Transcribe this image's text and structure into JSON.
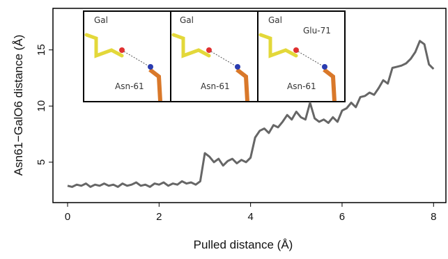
{
  "chart_data": {
    "type": "line",
    "x_label": "Pulled distance (Å)",
    "y_label": "Asn61−GalO6 distance (Å)",
    "x": [
      0.0,
      0.1,
      0.2,
      0.3,
      0.4,
      0.5,
      0.6,
      0.7,
      0.8,
      0.9,
      1.0,
      1.1,
      1.2,
      1.3,
      1.4,
      1.5,
      1.6,
      1.7,
      1.8,
      1.9,
      2.0,
      2.1,
      2.2,
      2.3,
      2.4,
      2.5,
      2.6,
      2.7,
      2.8,
      2.9,
      3.0,
      3.1,
      3.2,
      3.3,
      3.4,
      3.5,
      3.6,
      3.7,
      3.8,
      3.9,
      4.0,
      4.1,
      4.2,
      4.3,
      4.4,
      4.5,
      4.6,
      4.7,
      4.8,
      4.9,
      5.0,
      5.1,
      5.2,
      5.3,
      5.4,
      5.5,
      5.6,
      5.7,
      5.8,
      5.9,
      6.0,
      6.1,
      6.2,
      6.3,
      6.4,
      6.5,
      6.6,
      6.7,
      6.8,
      6.9,
      7.0,
      7.1,
      7.2,
      7.3,
      7.4,
      7.5,
      7.6,
      7.7,
      7.8,
      7.9,
      8.0
    ],
    "series": [
      {
        "color": "#666666",
        "values": [
          2.9,
          2.8,
          3.0,
          2.9,
          3.1,
          2.8,
          3.0,
          2.9,
          3.1,
          2.9,
          3.0,
          2.8,
          3.1,
          2.9,
          3.0,
          3.2,
          2.9,
          3.0,
          2.8,
          3.1,
          3.0,
          3.2,
          2.9,
          3.1,
          3.0,
          3.3,
          3.1,
          3.2,
          3.0,
          3.3,
          5.8,
          5.5,
          5.0,
          5.3,
          4.7,
          5.1,
          5.3,
          4.9,
          5.2,
          5.0,
          5.4,
          7.2,
          7.8,
          8.0,
          7.6,
          8.3,
          8.1,
          8.6,
          9.2,
          8.8,
          9.5,
          9.0,
          8.8,
          10.3,
          8.9,
          8.6,
          8.8,
          8.5,
          9.0,
          8.6,
          9.6,
          9.8,
          10.3,
          9.9,
          10.8,
          10.9,
          11.2,
          11.0,
          11.6,
          12.3,
          12.0,
          13.4,
          13.5,
          13.6,
          13.8,
          14.2,
          14.8,
          15.8,
          15.5,
          13.7,
          13.3
        ]
      }
    ],
    "xlim": [
      -0.32,
      8.27
    ],
    "ylim": [
      1.4,
      18.7
    ],
    "xticks": [
      0,
      2,
      4,
      6,
      8
    ],
    "yticks": [
      5,
      10,
      15
    ],
    "insets": [
      {
        "labels": [
          "Gal",
          "Asn-61"
        ]
      },
      {
        "labels": [
          "Gal",
          "Asn-61"
        ]
      },
      {
        "labels": [
          "Gal",
          "Glu-71",
          "Asn-61"
        ]
      }
    ]
  }
}
